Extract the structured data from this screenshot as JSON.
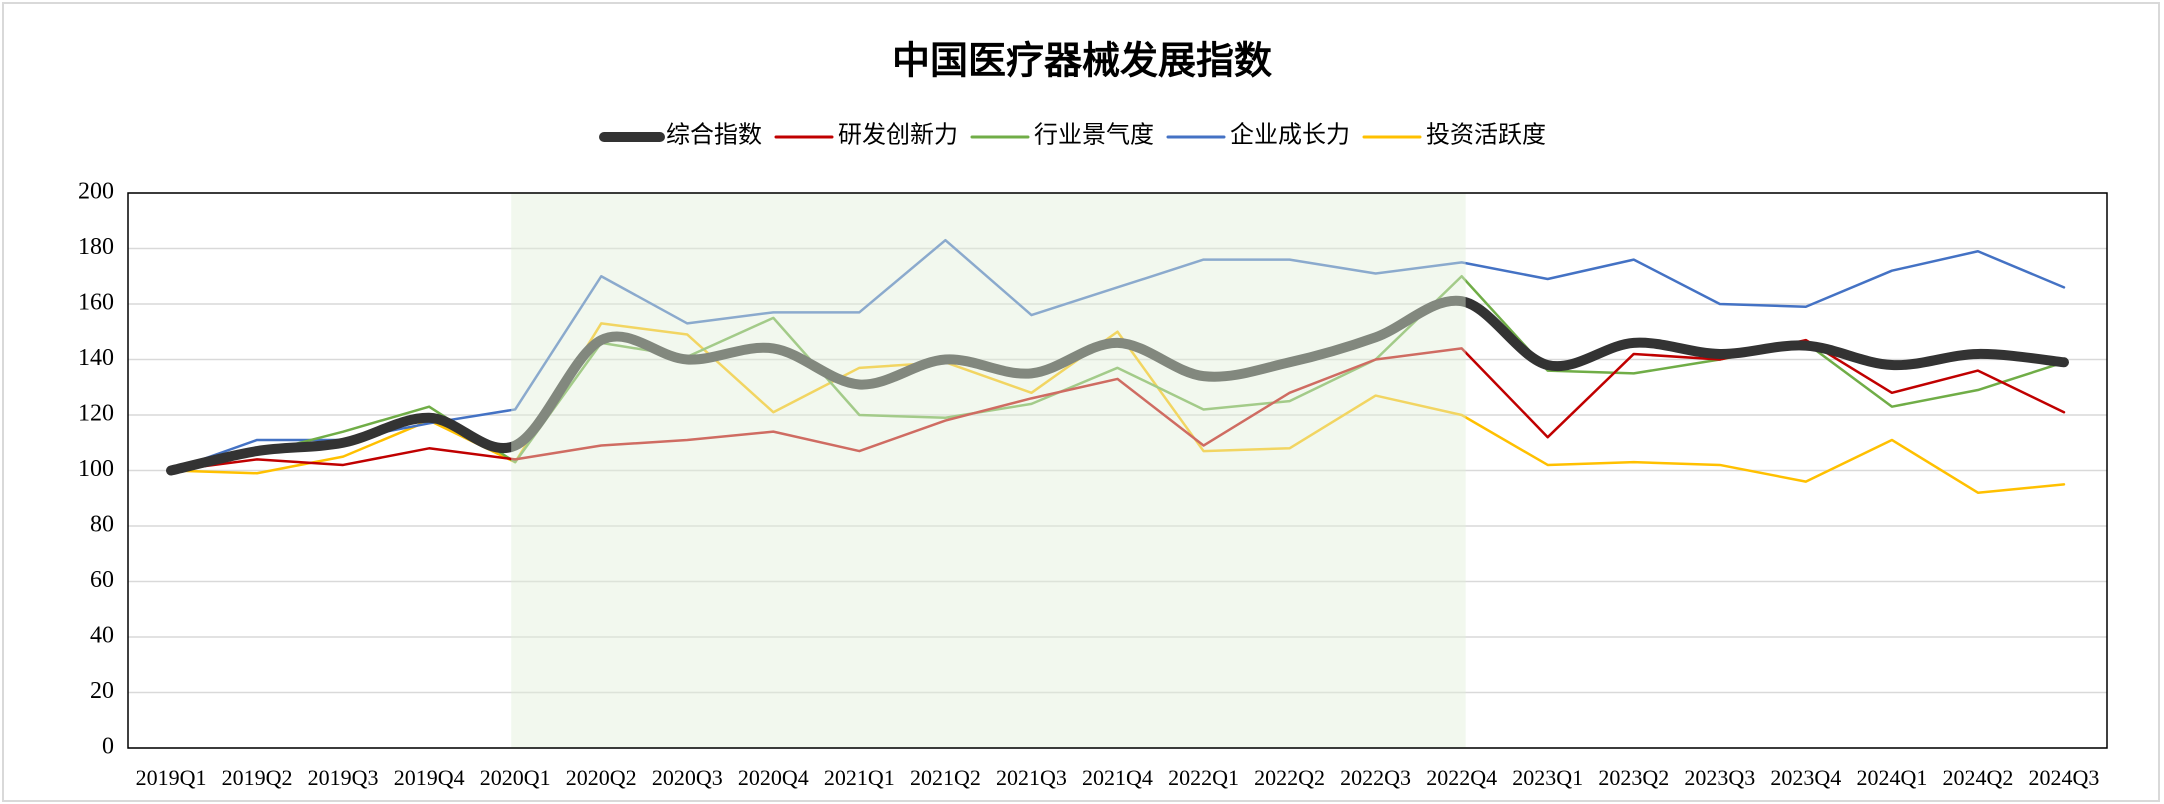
{
  "chart_data": {
    "type": "line",
    "title": "中国医疗器械发展指数",
    "categories": [
      "2019Q1",
      "2019Q2",
      "2019Q3",
      "2019Q4",
      "2020Q1",
      "2020Q2",
      "2020Q3",
      "2020Q4",
      "2021Q1",
      "2021Q2",
      "2021Q3",
      "2021Q4",
      "2022Q1",
      "2022Q2",
      "2022Q3",
      "2022Q4",
      "2023Q1",
      "2023Q2",
      "2023Q3",
      "2023Q4",
      "2024Q1",
      "2024Q2",
      "2024Q3"
    ],
    "series": [
      {
        "name": "综合指数",
        "color": "#333333",
        "values": [
          100,
          107,
          110,
          119,
          109,
          147,
          140,
          144,
          131,
          140,
          135,
          146,
          134,
          139,
          148,
          161,
          138,
          146,
          142,
          145,
          138,
          142,
          139
        ]
      },
      {
        "name": "研发创新力",
        "color": "#c00000",
        "values": [
          100,
          104,
          102,
          108,
          104,
          109,
          111,
          114,
          107,
          118,
          126,
          133,
          109,
          128,
          140,
          144,
          112,
          142,
          140,
          147,
          128,
          136,
          121
        ]
      },
      {
        "name": "行业景气度",
        "color": "#70ad47",
        "values": [
          100,
          106,
          114,
          123,
          103,
          146,
          141,
          155,
          120,
          119,
          124,
          137,
          122,
          125,
          140,
          170,
          136,
          135,
          140,
          146,
          123,
          129,
          139
        ]
      },
      {
        "name": "企业成长力",
        "color": "#4472c4",
        "values": [
          100,
          111,
          111,
          117,
          122,
          170,
          153,
          157,
          157,
          183,
          156,
          166,
          176,
          176,
          171,
          175,
          169,
          176,
          160,
          159,
          172,
          179,
          166
        ]
      },
      {
        "name": "投资活跃度",
        "color": "#ffc000",
        "values": [
          100,
          99,
          105,
          118,
          103,
          153,
          149,
          121,
          137,
          139,
          128,
          150,
          107,
          108,
          127,
          120,
          102,
          103,
          102,
          96,
          111,
          92,
          95
        ]
      }
    ],
    "ylim": [
      0,
      200
    ],
    "yticks": [
      0,
      20,
      40,
      60,
      80,
      100,
      120,
      140,
      160,
      180,
      200
    ],
    "grid": true,
    "legend": "top"
  }
}
